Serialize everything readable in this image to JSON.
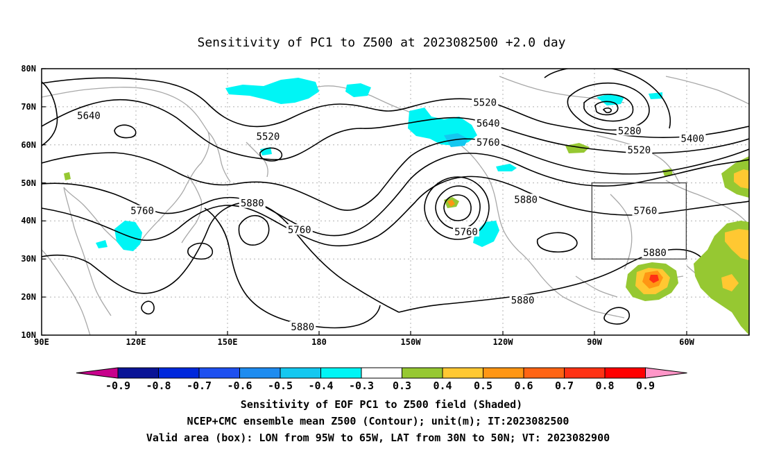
{
  "title": "Sensitivity of PC1 to Z500 at 2023082500 +2.0 day",
  "map": {
    "lat_labels": [
      "80N",
      "70N",
      "60N",
      "50N",
      "40N",
      "30N",
      "20N",
      "10N"
    ],
    "lon_labels": [
      "90E",
      "120E",
      "150E",
      "180",
      "150W",
      "120W",
      "90W",
      "60W"
    ],
    "contour_labels": [
      {
        "value": "5640",
        "lon": 105.0,
        "lat": 67.5
      },
      {
        "value": "5520",
        "lon": 162.0,
        "lat": 62.0
      },
      {
        "value": "5760",
        "lon": 122.0,
        "lat": 42.5
      },
      {
        "value": "5880",
        "lon": 157.0,
        "lat": 44.5
      },
      {
        "value": "5760",
        "lon": 172.0,
        "lat": 37.5
      },
      {
        "value": "5880",
        "lon": 173.0,
        "lat": 12.0
      },
      {
        "value": "5520",
        "lon": 231.0,
        "lat": 71.0
      },
      {
        "value": "5640",
        "lon": 232.0,
        "lat": 65.5
      },
      {
        "value": "5760",
        "lon": 232.0,
        "lat": 60.5
      },
      {
        "value": "5760",
        "lon": 225.0,
        "lat": 37.0
      },
      {
        "value": "5880",
        "lon": 244.0,
        "lat": 45.5
      },
      {
        "value": "5880",
        "lon": 243.0,
        "lat": 19.0
      },
      {
        "value": "5280",
        "lon": 277.0,
        "lat": 63.5
      },
      {
        "value": "5520",
        "lon": 280.0,
        "lat": 58.5
      },
      {
        "value": "5400",
        "lon": 297.0,
        "lat": 61.5
      },
      {
        "value": "5760",
        "lon": 282.0,
        "lat": 42.5
      },
      {
        "value": "5880",
        "lon": 285.0,
        "lat": 31.5
      }
    ],
    "valid_box": {
      "lon_west": -95,
      "lon_east": -65,
      "lat_south": 30,
      "lat_north": 50
    }
  },
  "colorbar": {
    "labels": [
      "-0.9",
      "-0.8",
      "-0.7",
      "-0.6",
      "-0.5",
      "-0.4",
      "-0.3",
      "0.3",
      "0.4",
      "0.5",
      "0.6",
      "0.7",
      "0.8",
      "0.9"
    ],
    "colors": [
      "#c8008c",
      "#0a1496",
      "#0028dc",
      "#1e50f0",
      "#1e8cf0",
      "#14c8f0",
      "#00f5f5",
      "#ffffff",
      "#96c832",
      "#ffc832",
      "#ff9614",
      "#ff6414",
      "#ff3214",
      "#ff0000",
      "#ff96c8"
    ]
  },
  "captions": [
    "Sensitivity of EOF PC1 to Z500 field (Shaded)",
    "NCEP+CMC ensemble mean Z500 (Contour); unit(m); IT:2023082500",
    "Valid area (box): LON from 95W to 65W, LAT from 30N to 50N; VT: 2023082900"
  ]
}
